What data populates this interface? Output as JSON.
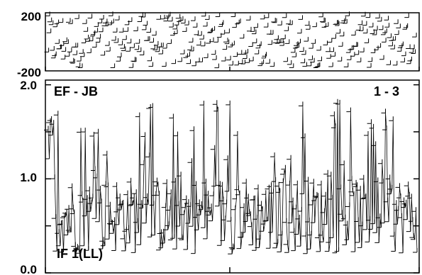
{
  "chart_data": [
    {
      "type": "scatter",
      "panel": "phase",
      "title": "",
      "xlabel": "",
      "ylabel": "",
      "ylim": [
        -200,
        200
      ],
      "y_ticks": [
        {
          "value": 200,
          "label": "200"
        },
        {
          "value": -200,
          "label": "-200"
        }
      ],
      "grid": false,
      "point_count": 340,
      "values_range": [
        -180,
        180
      ],
      "description_of_values": "phase points scattered uniformly between about -180 and 180 across the full time range"
    },
    {
      "type": "line",
      "panel": "amplitude",
      "title": "",
      "xlabel": "",
      "ylabel": "",
      "ylim": [
        0.0,
        2.05
      ],
      "y_ticks": [
        {
          "value": 2.0,
          "label": "2.0"
        },
        {
          "value": 1.0,
          "label": "1.0"
        },
        {
          "value": 0.0,
          "label": "0.0"
        }
      ],
      "grid": false,
      "annotations": {
        "baseline": "EF - JB",
        "channel": "1 - 3",
        "if_label": "IF 1(LL)"
      },
      "point_count": 340,
      "typical_value": 0.6,
      "max_value": 2.05,
      "min_value": 0.1
    }
  ],
  "colors": {
    "background": "#ffffff",
    "ink": "#000000"
  }
}
